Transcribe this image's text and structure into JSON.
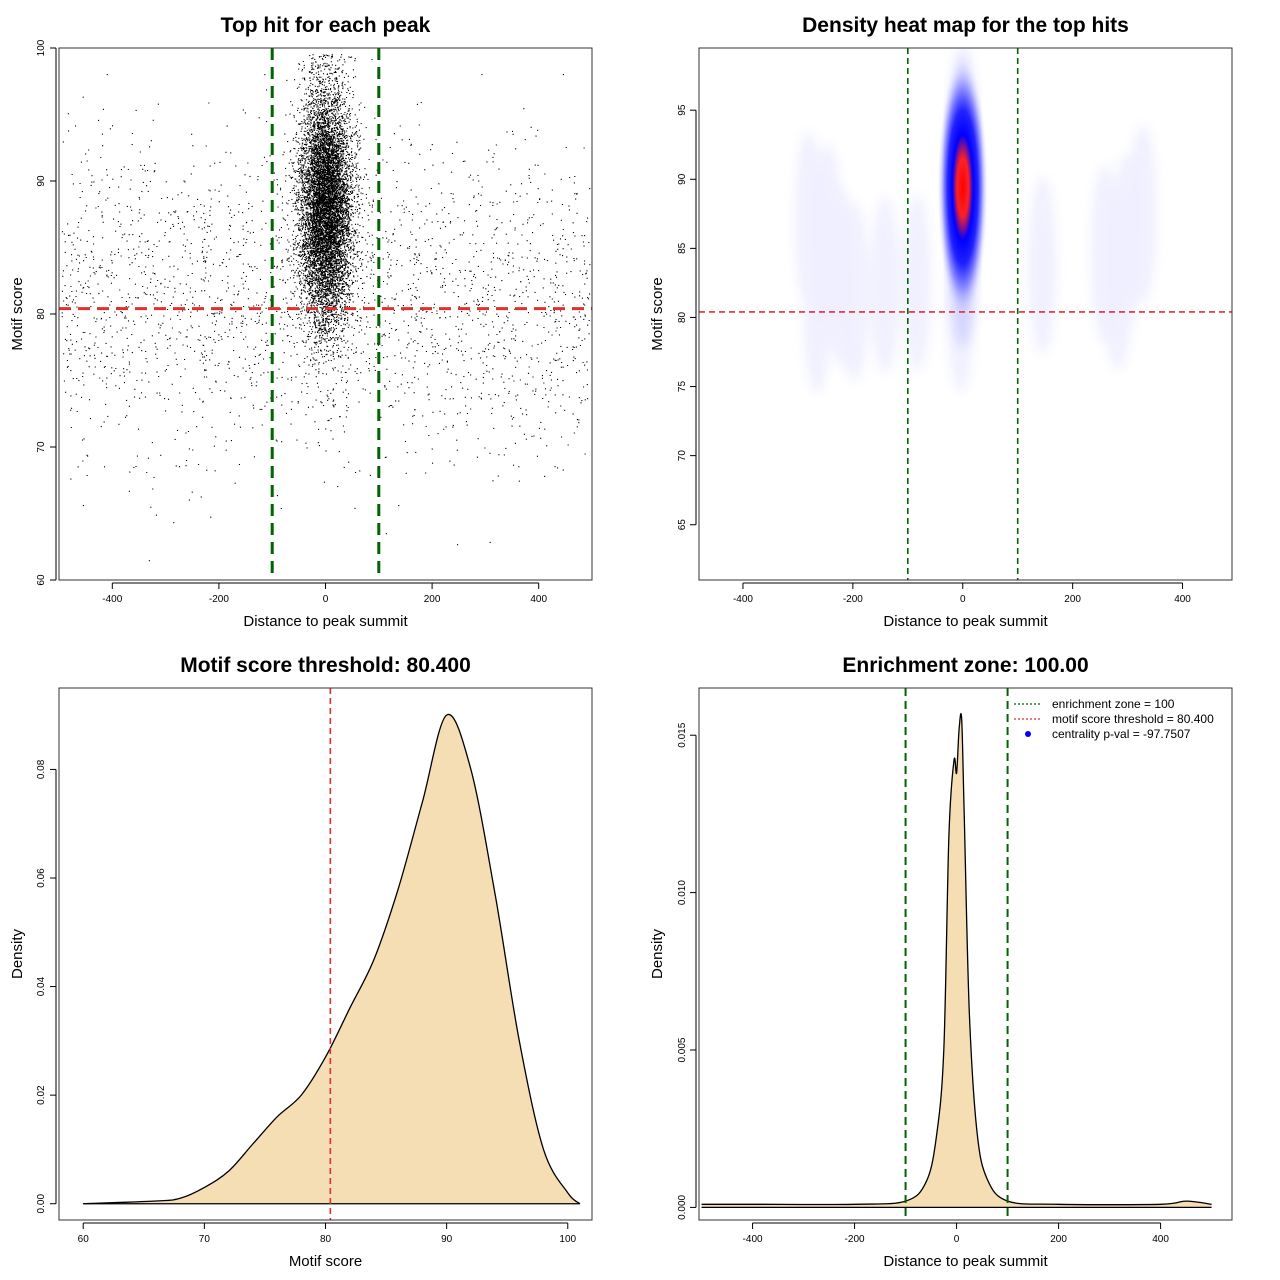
{
  "chart_data": [
    {
      "id": "scatter",
      "type": "scatter",
      "title": "Top hit for each peak",
      "xlabel": "Distance to peak summit",
      "ylabel": "Motif score",
      "xlim": [
        -500,
        500
      ],
      "ylim": [
        60,
        100
      ],
      "xticks": [
        "-400",
        "-200",
        "0",
        "200",
        "400"
      ],
      "yticks": [
        "60",
        "70",
        "80",
        "90",
        "100"
      ],
      "vlines": [
        -100,
        100
      ],
      "hline": 80.4,
      "colors": {
        "points": "#000000",
        "vlines": "#006400",
        "hline": "#e03030"
      },
      "grid": false,
      "points_description": {
        "central_cluster": {
          "x_mean": 0,
          "x_sd": 25,
          "y_mean": 88,
          "y_sd": 4.5,
          "y_range": [
            72,
            99.5
          ]
        },
        "background": {
          "x_range": [
            -495,
            495
          ],
          "y_mean": 81,
          "y_sd": 6,
          "y_range": [
            60,
            98
          ]
        }
      }
    },
    {
      "id": "heatmap",
      "type": "heatmap",
      "title": "Density heat map for the top hits",
      "xlabel": "Distance to peak summit",
      "ylabel": "Motif score",
      "xlim": [
        -480,
        490
      ],
      "ylim": [
        61,
        99.5
      ],
      "xticks": [
        "-400",
        "-200",
        "0",
        "200",
        "400"
      ],
      "yticks": [
        "65",
        "70",
        "75",
        "80",
        "85",
        "90",
        "95"
      ],
      "vlines": [
        -100,
        100
      ],
      "hline": 80.4,
      "colors": {
        "low": "#ffffff",
        "mid": "#0000ff",
        "high": "#ff0000",
        "vlines": "#006400",
        "hline": "#e03030"
      },
      "grid": false,
      "density_peak": {
        "x": 0,
        "y": 90
      }
    },
    {
      "id": "score_density",
      "type": "area",
      "title": "Motif score threshold: 80.400",
      "xlabel": "Motif score",
      "ylabel": "Density",
      "xlim": [
        58,
        102
      ],
      "ylim": [
        -0.003,
        0.095
      ],
      "xticks": [
        "60",
        "70",
        "80",
        "90",
        "100"
      ],
      "yticks": [
        "0.00",
        "0.02",
        "0.04",
        "0.06",
        "0.08"
      ],
      "vline": 80.4,
      "colors": {
        "fill": "#f5deb3",
        "line": "#000000",
        "vline": "#e03030"
      },
      "grid": false,
      "x": [
        60,
        66,
        68,
        70,
        72,
        74,
        76,
        78,
        80,
        82,
        84,
        86,
        88,
        90,
        92,
        94,
        96,
        98,
        100,
        101
      ],
      "y": [
        0.0,
        0.0005,
        0.001,
        0.003,
        0.006,
        0.011,
        0.016,
        0.02,
        0.027,
        0.036,
        0.045,
        0.058,
        0.074,
        0.09,
        0.08,
        0.057,
        0.03,
        0.01,
        0.002,
        0.0
      ]
    },
    {
      "id": "distance_density",
      "type": "area",
      "title": "Enrichment zone: 100.00",
      "xlabel": "Distance to peak summit",
      "ylabel": "Density",
      "xlim": [
        -505,
        540
      ],
      "ylim": [
        -0.0004,
        0.0165
      ],
      "xticks": [
        "-400",
        "-200",
        "0",
        "200",
        "400"
      ],
      "yticks": [
        "0.000",
        "0.005",
        "0.010",
        "0.015"
      ],
      "vlines": [
        -100,
        100
      ],
      "colors": {
        "fill": "#f5deb3",
        "line": "#000000",
        "vlines": "#006400"
      },
      "grid": false,
      "x": [
        -500,
        -400,
        -200,
        -100,
        -60,
        -40,
        -25,
        -15,
        -5,
        0,
        5,
        10,
        15,
        25,
        40,
        60,
        100,
        200,
        400,
        450,
        500
      ],
      "y": [
        0.0001,
        0.0001,
        0.0001,
        0.0002,
        0.0008,
        0.0022,
        0.005,
        0.0118,
        0.0142,
        0.0138,
        0.0152,
        0.0155,
        0.0125,
        0.0062,
        0.0024,
        0.0009,
        0.0002,
        0.0001,
        0.0001,
        0.0002,
        0.0001
      ],
      "legend": {
        "position": "top-right",
        "entries": [
          {
            "label": "enrichment zone = 100",
            "color": "#006400",
            "kind": "dotted-line"
          },
          {
            "label": "motif score threshold = 80.400",
            "color": "#e03030",
            "kind": "dotted-line"
          },
          {
            "label": "centrality p-val = -97.7507",
            "color": "#0000ff",
            "kind": "point"
          }
        ]
      }
    }
  ]
}
